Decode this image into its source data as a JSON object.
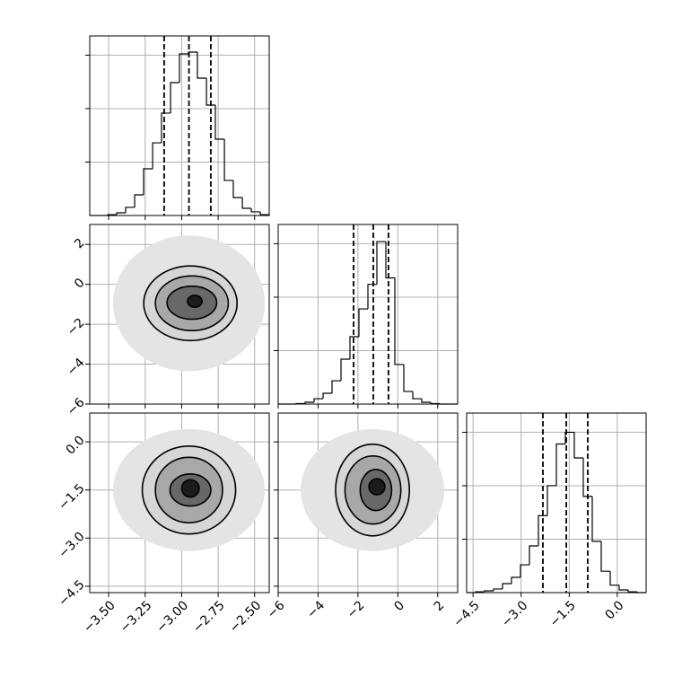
{
  "chart_data": {
    "type": "corner",
    "grid": true,
    "hist_color": "#000000",
    "hist_ylim": [
      0,
      1680
    ],
    "hist_yticks": [
      500,
      1000,
      1500
    ],
    "params": [
      {
        "xlim": [
          -3.63,
          -2.4
        ],
        "ticks": [
          {
            "value": -3.5,
            "label": "−3.50"
          },
          {
            "value": -3.25,
            "label": "−3.25"
          },
          {
            "value": -3.0,
            "label": "−3.00"
          },
          {
            "value": -2.75,
            "label": "−2.75"
          },
          {
            "value": -2.5,
            "label": "−2.50"
          }
        ],
        "bins": [
          -3.63,
          -3.568,
          -3.507,
          -3.445,
          -3.384,
          -3.322,
          -3.261,
          -3.199,
          -3.138,
          -3.076,
          -3.015,
          -2.953,
          -2.892,
          -2.83,
          -2.769,
          -2.707,
          -2.646,
          -2.584,
          -2.523,
          -2.461,
          -2.4
        ],
        "counts": [
          0,
          0,
          8,
          25,
          76,
          193,
          437,
          680,
          958,
          1243,
          1512,
          1529,
          1285,
          1033,
          714,
          328,
          168,
          67,
          34,
          8
        ],
        "quantiles": [
          -3.12,
          -2.95,
          -2.8
        ]
      },
      {
        "xlim": [
          -6,
          3
        ],
        "ticks": [
          {
            "value": -6,
            "label": "−6"
          },
          {
            "value": -4,
            "label": "−4"
          },
          {
            "value": -2,
            "label": "−2"
          },
          0,
          2
        ],
        "bins": [
          -6,
          -5.55,
          -5.1,
          -4.65,
          -4.2,
          -3.75,
          -3.3,
          -2.85,
          -2.4,
          -1.95,
          -1.5,
          -1.05,
          -0.6,
          -0.15,
          0.3,
          0.75,
          1.2,
          1.65,
          2.1,
          2.55,
          3
        ],
        "counts": [
          0,
          0,
          4,
          17,
          50,
          101,
          218,
          420,
          630,
          890,
          1120,
          1520,
          1180,
          370,
          118,
          50,
          17,
          4,
          0,
          0
        ],
        "quantiles": [
          -2.22,
          -1.23,
          -0.47
        ]
      },
      {
        "xlim": [
          -4.7,
          0.9
        ],
        "ticks": [
          {
            "value": -4.5,
            "label": "−4.5"
          },
          {
            "value": -3.0,
            "label": "−3.0"
          },
          {
            "value": -1.5,
            "label": "−1.5"
          },
          {
            "value": 0,
            "label": "0.0"
          }
        ],
        "bins": [
          -4.7,
          -4.42,
          -4.14,
          -3.86,
          -3.58,
          -3.3,
          -3.02,
          -2.74,
          -2.46,
          -2.18,
          -1.9,
          -1.62,
          -1.34,
          -1.06,
          -0.78,
          -0.5,
          -0.22,
          0.06,
          0.34,
          0.62,
          0.9
        ],
        "counts": [
          0,
          8,
          17,
          34,
          84,
          143,
          260,
          437,
          720,
          1000,
          1390,
          1500,
          1260,
          900,
          480,
          200,
          70,
          25,
          8,
          0
        ],
        "quantiles": [
          -2.32,
          -1.59,
          -0.92
        ]
      }
    ],
    "pairs": [
      {
        "cloud": {
          "cx": -2.95,
          "cy": -0.95,
          "rx": 0.52,
          "ry": 3.4,
          "color": "#e4e4e4"
        },
        "contours": [
          {
            "cx": -2.94,
            "cy": -0.95,
            "rx": 0.32,
            "ry": 1.87,
            "color": "#d6d6d6"
          },
          {
            "cx": -2.93,
            "cy": -0.95,
            "rx": 0.25,
            "ry": 1.37,
            "color": "#a8a8a8"
          },
          {
            "cx": -2.93,
            "cy": -0.92,
            "rx": 0.17,
            "ry": 0.83,
            "color": "#686868"
          },
          {
            "cx": -2.91,
            "cy": -0.85,
            "rx": 0.05,
            "ry": 0.3,
            "color": "#1c1c1c"
          }
        ]
      },
      {
        "cloud": {
          "cx": -2.95,
          "cy": -1.5,
          "rx": 0.52,
          "ry": 1.9,
          "color": "#e4e4e4"
        },
        "contours": [
          {
            "cx": -2.95,
            "cy": -1.5,
            "rx": 0.32,
            "ry": 1.37,
            "color": "#d6d6d6"
          },
          {
            "cx": -2.95,
            "cy": -1.5,
            "rx": 0.23,
            "ry": 1.02,
            "color": "#a8a8a8"
          },
          {
            "cx": -2.94,
            "cy": -1.5,
            "rx": 0.14,
            "ry": 0.5,
            "color": "#686868"
          },
          {
            "cx": -2.94,
            "cy": -1.45,
            "rx": 0.06,
            "ry": 0.27,
            "color": "#1c1c1c"
          }
        ]
      },
      {
        "cloud": {
          "cx": -1.27,
          "cy": -1.5,
          "rx": 3.6,
          "ry": 1.9,
          "color": "#e4e4e4"
        },
        "contours": [
          {
            "cx": -1.27,
            "cy": -1.5,
            "rx": 1.85,
            "ry": 1.43,
            "color": "#d6d6d6"
          },
          {
            "cx": -1.25,
            "cy": -1.5,
            "rx": 1.4,
            "ry": 1.06,
            "color": "#a8a8a8"
          },
          {
            "cx": -1.1,
            "cy": -1.5,
            "rx": 0.79,
            "ry": 0.64,
            "color": "#686868"
          },
          {
            "cx": -1.05,
            "cy": -1.4,
            "rx": 0.4,
            "ry": 0.25,
            "color": "#1c1c1c"
          }
        ]
      }
    ]
  }
}
